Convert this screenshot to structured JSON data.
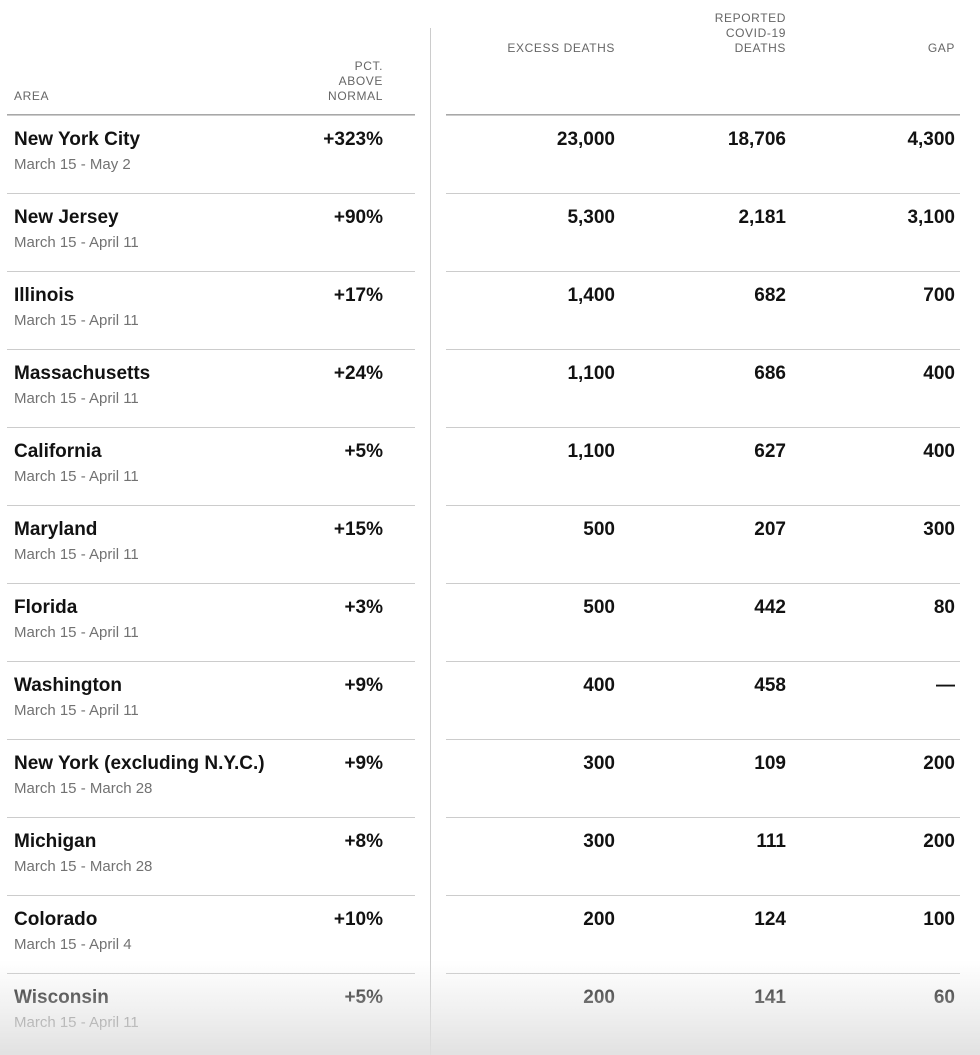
{
  "colors": {
    "text_primary": "#121212",
    "text_secondary": "#727272",
    "header_text": "#666666",
    "row_rule": "#cccccc",
    "header_rule": "#a8a8a8",
    "divider": "#cccccc",
    "bottom_fade": "#e3e3e3"
  },
  "header": {
    "area": "AREA",
    "pct_above_normal": "PCT.\nABOVE\nNORMAL",
    "excess_deaths": "EXCESS DEATHS",
    "reported_covid19_deaths": "REPORTED\nCOVID-19\nDEATHS",
    "gap": "GAP"
  },
  "chart_data": {
    "type": "table",
    "columns": [
      "Area",
      "Pct. above normal",
      "Excess deaths",
      "Reported Covid-19 deaths",
      "Gap"
    ],
    "rows": [
      {
        "area": "New York City",
        "date_range": "March 15 - May 2",
        "pct_above_normal": "+323%",
        "excess_deaths": "23,000",
        "reported_covid19_deaths": "18,706",
        "gap": "4,300"
      },
      {
        "area": "New Jersey",
        "date_range": "March 15 - April 11",
        "pct_above_normal": "+90%",
        "excess_deaths": "5,300",
        "reported_covid19_deaths": "2,181",
        "gap": "3,100"
      },
      {
        "area": "Illinois",
        "date_range": "March 15 - April 11",
        "pct_above_normal": "+17%",
        "excess_deaths": "1,400",
        "reported_covid19_deaths": "682",
        "gap": "700"
      },
      {
        "area": "Massachusetts",
        "date_range": "March 15 - April 11",
        "pct_above_normal": "+24%",
        "excess_deaths": "1,100",
        "reported_covid19_deaths": "686",
        "gap": "400"
      },
      {
        "area": "California",
        "date_range": "March 15 - April 11",
        "pct_above_normal": "+5%",
        "excess_deaths": "1,100",
        "reported_covid19_deaths": "627",
        "gap": "400"
      },
      {
        "area": "Maryland",
        "date_range": "March 15 - April 11",
        "pct_above_normal": "+15%",
        "excess_deaths": "500",
        "reported_covid19_deaths": "207",
        "gap": "300"
      },
      {
        "area": "Florida",
        "date_range": "March 15 - April 11",
        "pct_above_normal": "+3%",
        "excess_deaths": "500",
        "reported_covid19_deaths": "442",
        "gap": "80"
      },
      {
        "area": "Washington",
        "date_range": "March 15 - April 11",
        "pct_above_normal": "+9%",
        "excess_deaths": "400",
        "reported_covid19_deaths": "458",
        "gap": "—"
      },
      {
        "area": "New York (excluding N.Y.C.)",
        "date_range": "March 15 - March 28",
        "pct_above_normal": "+9%",
        "excess_deaths": "300",
        "reported_covid19_deaths": "109",
        "gap": "200"
      },
      {
        "area": "Michigan",
        "date_range": "March 15 - March 28",
        "pct_above_normal": "+8%",
        "excess_deaths": "300",
        "reported_covid19_deaths": "111",
        "gap": "200"
      },
      {
        "area": "Colorado",
        "date_range": "March 15 - April 4",
        "pct_above_normal": "+10%",
        "excess_deaths": "200",
        "reported_covid19_deaths": "124",
        "gap": "100"
      },
      {
        "area": "Wisconsin",
        "date_range": "March 15 - April 11",
        "pct_above_normal": "+5%",
        "excess_deaths": "200",
        "reported_covid19_deaths": "141",
        "gap": "60"
      }
    ]
  }
}
